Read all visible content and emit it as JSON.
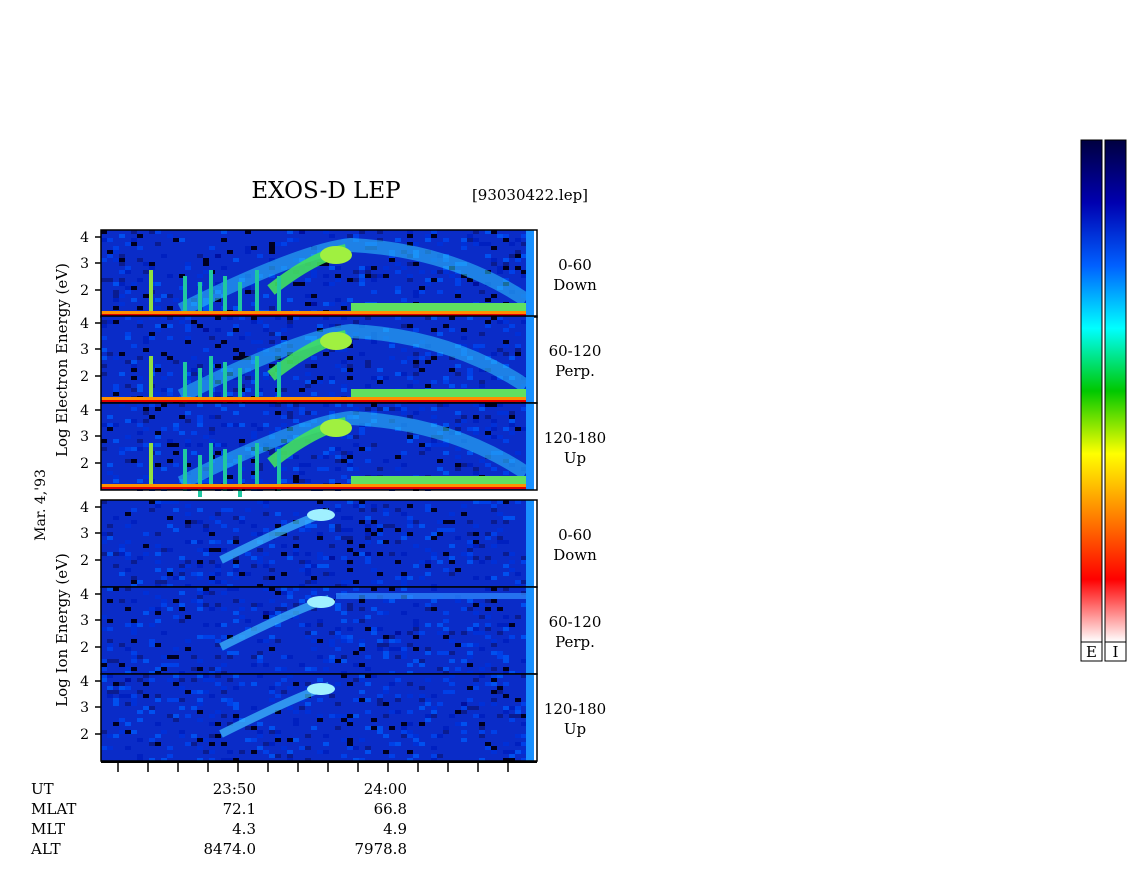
{
  "title": "EXOS-D LEP",
  "file_label": "[93030422.lep]",
  "date_label": "Mar. 4,'93",
  "electron_axis_label": "Log  Electron  Energy (eV)",
  "ion_axis_label": "Log  Ion  Energy (eV)",
  "colorbar_labels": [
    "E",
    "I"
  ],
  "colorbar_stops": [
    "#ffffff",
    "#ff0000",
    "#ff8000",
    "#ffff00",
    "#00c800",
    "#00ffff",
    "#0060ff",
    "#0000b0",
    "#000040"
  ],
  "orbit_table": {
    "row_labels": [
      "UT",
      "MLAT",
      "MLT",
      "ALT"
    ],
    "columns": [
      {
        "values": [
          "23:50",
          "72.1",
          "4.3",
          "8474.0"
        ]
      },
      {
        "values": [
          "24:00",
          "66.8",
          "4.9",
          "7978.8"
        ]
      }
    ]
  },
  "chart_data": {
    "type": "heatmap",
    "y_scale": "log",
    "ylim": [
      1,
      4.2
    ],
    "y_ticks": [
      "4",
      "3",
      "2"
    ],
    "x_tick_labels": [
      "23:50",
      "24:00"
    ],
    "panels": [
      {
        "species": "Electron",
        "angle": "0-60",
        "direction": "Down"
      },
      {
        "species": "Electron",
        "angle": "60-120",
        "direction": "Perp."
      },
      {
        "species": "Electron",
        "angle": "120-180",
        "direction": "Up"
      },
      {
        "species": "Ion",
        "angle": "0-60",
        "direction": "Down"
      },
      {
        "species": "Ion",
        "angle": "60-120",
        "direction": "Perp."
      },
      {
        "species": "Ion",
        "angle": "120-180",
        "direction": "Up"
      }
    ]
  }
}
